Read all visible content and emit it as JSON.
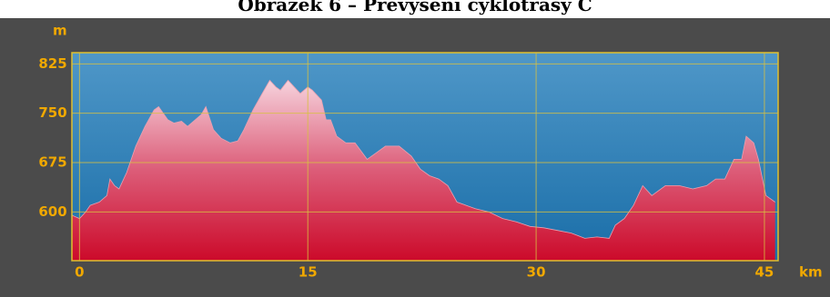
{
  "chart_data": {
    "type": "area",
    "title": "Obrázek 6 – Převýšení cyklotrasy C",
    "y_label": "m",
    "x_label": "km",
    "x": [
      -0.5,
      0,
      0.4,
      0.7,
      1.3,
      1.8,
      2,
      2.3,
      2.6,
      3.1,
      3.7,
      4.3,
      4.9,
      5.2,
      5.8,
      6.2,
      6.7,
      7.1,
      7.6,
      8,
      8.3,
      8.8,
      9.3,
      9.9,
      10.4,
      10.8,
      11.4,
      12,
      12.5,
      12.9,
      13.2,
      13.7,
      14.1,
      14.5,
      15,
      15.3,
      15.9,
      16.2,
      16.5,
      16.9,
      17.5,
      18.1,
      18.9,
      19.5,
      20.1,
      21,
      21.8,
      22.4,
      23,
      23.6,
      24.2,
      24.8,
      25.4,
      26,
      26.9,
      27.8,
      28.7,
      29.6,
      30.5,
      31.4,
      32.3,
      33.2,
      34,
      34.8,
      35.2,
      35.8,
      36.4,
      37,
      37.6,
      38.5,
      39.4,
      40.3,
      41.2,
      41.8,
      42.4,
      43,
      43.5,
      43.8,
      44.3,
      44.6,
      45.1,
      45.7
    ],
    "values": [
      595,
      590,
      600,
      610,
      615,
      625,
      650,
      640,
      635,
      660,
      700,
      730,
      755,
      760,
      740,
      735,
      738,
      730,
      740,
      748,
      760,
      725,
      712,
      705,
      708,
      725,
      755,
      780,
      800,
      790,
      785,
      800,
      790,
      780,
      790,
      785,
      770,
      740,
      740,
      715,
      705,
      705,
      680,
      690,
      700,
      700,
      685,
      665,
      655,
      650,
      640,
      615,
      610,
      605,
      600,
      590,
      585,
      578,
      576,
      572,
      568,
      560,
      562,
      560,
      580,
      590,
      610,
      640,
      625,
      640,
      640,
      635,
      640,
      650,
      650,
      680,
      680,
      715,
      705,
      680,
      625,
      615
    ],
    "xlim": [
      -0.5,
      45.9
    ],
    "ylim": [
      526,
      842
    ],
    "xticks": [
      0,
      15,
      30,
      45
    ],
    "yticks": [
      600,
      675,
      750,
      825
    ],
    "grid": true
  }
}
